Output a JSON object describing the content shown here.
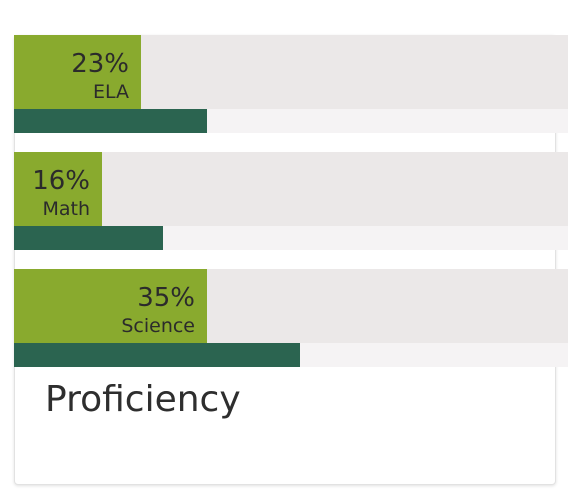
{
  "colors": {
    "proficiency_fill": "#89aa2e",
    "comparison_fill": "#2b6450",
    "track_top": "#ebe8e8",
    "track_bottom": "#f5f3f4",
    "text": "#2b2b2b"
  },
  "chart_data": {
    "type": "bar",
    "orientation": "horizontal",
    "title": "Proficiency",
    "categories": [
      "ELA",
      "Math",
      "Science"
    ],
    "series": [
      {
        "values": [
          23,
          16,
          35
        ]
      },
      {
        "values": [
          35,
          27,
          52
        ]
      }
    ],
    "value_labels": [
      "23%",
      "16%",
      "35%"
    ],
    "xlim": [
      0,
      100
    ],
    "grid": false,
    "legend": "none"
  }
}
